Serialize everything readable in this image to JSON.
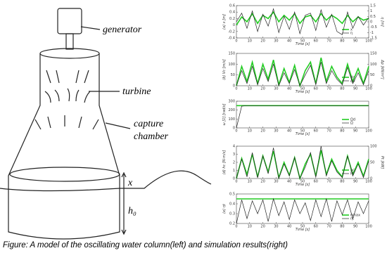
{
  "diagram": {
    "generator": "generator",
    "turbine": "turbine",
    "capture": "capture",
    "chamber": "chamber",
    "x": "x",
    "h0": "h₀"
  },
  "caption": "Figure: A model of the oscillating water column(left) and simulation results(right)",
  "chart_data": [
    {
      "type": "line",
      "ylabel": "(a) x [m]",
      "y2label": "η [m]",
      "xlabel": "Time [s]",
      "x": [
        0,
        4,
        8,
        12,
        16,
        20,
        24,
        28,
        32,
        36,
        40,
        44,
        48,
        52,
        56,
        60,
        64,
        68,
        72,
        76,
        80,
        84,
        88,
        92,
        96,
        100
      ],
      "xlim": [
        0,
        100
      ],
      "xticks": [
        0,
        10,
        20,
        30,
        40,
        50,
        60,
        70,
        80,
        90,
        100
      ],
      "ylim": [
        -0.4,
        0.6
      ],
      "yticks": [
        -0.4,
        -0.2,
        0,
        0.2,
        0.4,
        0.6
      ],
      "y2lim": [
        -1.5,
        1.5
      ],
      "y2ticks": [
        -1.5,
        -1,
        -0.5,
        0,
        0.5,
        1,
        1.5
      ],
      "series": [
        {
          "name": "x",
          "color": "#22cc22",
          "values": [
            0,
            0.25,
            0.1,
            0.35,
            0.05,
            0.3,
            0.2,
            0.4,
            0.1,
            0.3,
            0.15,
            0.35,
            0.05,
            0.25,
            0.3,
            0.1,
            0.35,
            0.15,
            0.3,
            0.2,
            0.05,
            0.3,
            0.1,
            0.25,
            0.15,
            0.2
          ]
        },
        {
          "name": "η",
          "color": "#222222",
          "axis": "y2",
          "values": [
            0,
            0.8,
            -0.6,
            1,
            -0.9,
            0.7,
            -0.4,
            1.2,
            -1,
            0.5,
            -0.7,
            0.9,
            -1.1,
            0.6,
            0.8,
            -0.8,
            1.1,
            -0.5,
            0.7,
            -0.9,
            -1.2,
            0.9,
            -0.6,
            0.5,
            -0.3,
            0.4
          ]
        }
      ]
    },
    {
      "type": "line",
      "ylabel": "(b) Vc [m/s]",
      "y2label": "Δp [kN/m²]",
      "xlabel": "Time [s]",
      "x": [
        0,
        4,
        8,
        12,
        16,
        20,
        24,
        28,
        32,
        36,
        40,
        44,
        48,
        52,
        56,
        60,
        64,
        68,
        72,
        76,
        80,
        84,
        88,
        92,
        96,
        100
      ],
      "xlim": [
        0,
        100
      ],
      "xticks": [
        0,
        10,
        20,
        30,
        40,
        50,
        60,
        70,
        80,
        90,
        100
      ],
      "ylim": [
        0,
        150
      ],
      "yticks": [
        0,
        50,
        100,
        150
      ],
      "y2lim": [
        0,
        150
      ],
      "y2ticks": [
        0,
        50,
        100,
        150
      ],
      "series": [
        {
          "name": "Vc",
          "color": "#22cc22",
          "values": [
            0,
            90,
            20,
            110,
            10,
            100,
            30,
            120,
            5,
            80,
            15,
            95,
            0,
            70,
            110,
            10,
            130,
            20,
            90,
            40,
            10,
            100,
            20,
            80,
            10,
            90
          ]
        },
        {
          "name": "Δp",
          "color": "#222222",
          "axis": "y2",
          "values": [
            0,
            70,
            10,
            90,
            5,
            80,
            20,
            100,
            0,
            60,
            10,
            75,
            0,
            50,
            95,
            5,
            110,
            10,
            70,
            30,
            5,
            85,
            10,
            60,
            5,
            70
          ]
        }
      ]
    },
    {
      "type": "line",
      "ylabel": "ω [1] [rad/s]",
      "xlabel": "Time [s]",
      "x": [
        0,
        4,
        8,
        12,
        16,
        20,
        24,
        28,
        32,
        36,
        40,
        44,
        48,
        52,
        56,
        60,
        64,
        68,
        72,
        76,
        80,
        84,
        88,
        92,
        96,
        100
      ],
      "xlim": [
        0,
        100
      ],
      "xticks": [
        0,
        10,
        20,
        30,
        40,
        50,
        60,
        70,
        80,
        90,
        100
      ],
      "ylim": [
        0,
        300
      ],
      "yticks": [
        0,
        100,
        200,
        300
      ],
      "series": [
        {
          "name": "Ωd",
          "color": "#22cc22",
          "values": [
            250,
            250,
            250,
            250,
            250,
            250,
            250,
            250,
            250,
            250,
            250,
            250,
            250,
            250,
            250,
            250,
            250,
            250,
            250,
            250,
            250,
            250,
            250,
            250,
            250,
            250
          ]
        },
        {
          "name": "Ω",
          "color": "#222222",
          "values": [
            0,
            245,
            250,
            250,
            250,
            250,
            250,
            250,
            250,
            250,
            250,
            250,
            250,
            250,
            250,
            250,
            250,
            250,
            250,
            250,
            250,
            250,
            250,
            250,
            250,
            250
          ]
        }
      ]
    },
    {
      "type": "line",
      "ylabel": "(d) hc [N·m/s]",
      "y2label": "Pt [kW]",
      "xlabel": "Time [s]",
      "x": [
        0,
        4,
        8,
        12,
        16,
        20,
        24,
        28,
        32,
        36,
        40,
        44,
        48,
        52,
        56,
        60,
        64,
        68,
        72,
        76,
        80,
        84,
        88,
        92,
        96,
        100
      ],
      "xlim": [
        0,
        100
      ],
      "xticks": [
        0,
        10,
        20,
        30,
        40,
        50,
        60,
        70,
        80,
        90,
        100
      ],
      "ylim": [
        0,
        4
      ],
      "yticks": [
        0,
        1,
        2,
        3,
        4
      ],
      "y2lim": [
        0,
        100
      ],
      "y2ticks": [
        0,
        50,
        100
      ],
      "series": [
        {
          "name": "hc",
          "color": "#22cc22",
          "values": [
            0,
            2.5,
            0.5,
            3,
            0.2,
            2.8,
            0.8,
            3.4,
            0.1,
            2,
            0.4,
            2.6,
            0,
            1.8,
            3,
            0.3,
            3.5,
            0.5,
            2.4,
            1,
            0.2,
            2.8,
            0.5,
            2,
            0.3,
            2.4
          ]
        },
        {
          "name": "Pt",
          "color": "#222222",
          "axis": "y2",
          "values": [
            0,
            60,
            5,
            80,
            2,
            70,
            15,
            95,
            0,
            45,
            8,
            65,
            0,
            35,
            80,
            4,
            100,
            8,
            55,
            20,
            3,
            70,
            8,
            45,
            3,
            55
          ]
        }
      ]
    },
    {
      "type": "line",
      "ylabel": "(e) ηt",
      "xlabel": "Time [s]",
      "x": [
        0,
        4,
        8,
        12,
        16,
        20,
        24,
        28,
        32,
        36,
        40,
        44,
        48,
        52,
        56,
        60,
        64,
        68,
        72,
        76,
        80,
        84,
        88,
        92,
        96,
        100
      ],
      "xlim": [
        0,
        100
      ],
      "xticks": [
        0,
        10,
        20,
        30,
        40,
        50,
        60,
        70,
        80,
        90,
        100
      ],
      "ylim": [
        0.2,
        0.5
      ],
      "yticks": [
        0.2,
        0.3,
        0.4,
        0.5
      ],
      "series": [
        {
          "name": "ηmax",
          "color": "#22cc22",
          "values": [
            0.45,
            0.45,
            0.45,
            0.45,
            0.45,
            0.45,
            0.45,
            0.45,
            0.45,
            0.45,
            0.45,
            0.45,
            0.45,
            0.45,
            0.45,
            0.45,
            0.45,
            0.45,
            0.45,
            0.45,
            0.45,
            0.45,
            0.45,
            0.45,
            0.45,
            0.45
          ]
        },
        {
          "name": "ηt",
          "color": "#222222",
          "values": [
            0.2,
            0.44,
            0.25,
            0.43,
            0.3,
            0.44,
            0.22,
            0.45,
            0.28,
            0.42,
            0.24,
            0.44,
            0.3,
            0.41,
            0.23,
            0.44,
            0.27,
            0.45,
            0.22,
            0.43,
            0.29,
            0.44,
            0.25,
            0.42,
            0.3,
            0.43
          ]
        }
      ]
    }
  ]
}
